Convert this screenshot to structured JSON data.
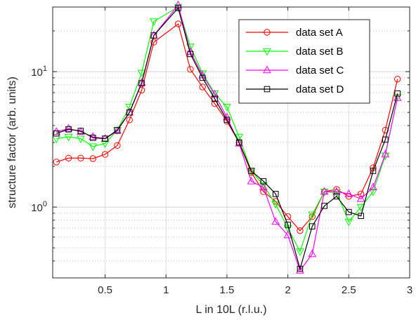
{
  "chart_data": {
    "type": "line",
    "xlabel": "L in 10L (r.l.u.)",
    "ylabel": "structure factor (arb. units)",
    "xlim": [
      0.07,
      3.0
    ],
    "ylim": [
      0.3,
      30
    ],
    "yscale": "log",
    "grid": "on",
    "legend_position": "top-right",
    "x_ticks": [
      0.5,
      1,
      1.5,
      2,
      2.5,
      3
    ],
    "x_tick_labels": [
      "0.5",
      "1",
      "1.5",
      "2",
      "2.5",
      "3"
    ],
    "y_ticks": [
      1,
      10
    ],
    "y_tick_labels": [
      "10^0",
      "10^1"
    ],
    "x": [
      0.1,
      0.2,
      0.3,
      0.4,
      0.5,
      0.6,
      0.7,
      0.8,
      0.9,
      1.1,
      1.2,
      1.3,
      1.4,
      1.5,
      1.6,
      1.7,
      1.8,
      1.9,
      2.0,
      2.1,
      2.2,
      2.3,
      2.4,
      2.5,
      2.6,
      2.7,
      2.8,
      2.9
    ],
    "series": [
      {
        "name": "data set A",
        "color": "#ff0000",
        "marker": "circle",
        "values": [
          2.15,
          2.3,
          2.3,
          2.28,
          2.45,
          2.85,
          4.4,
          7.3,
          16.5,
          22.5,
          10.4,
          7.7,
          5.8,
          4.3,
          3.0,
          1.8,
          1.3,
          1.1,
          0.85,
          0.67,
          0.85,
          1.3,
          1.35,
          1.2,
          1.25,
          1.95,
          3.7,
          8.8
        ]
      },
      {
        "name": "data set B",
        "color": "#00ff00",
        "marker": "triangle-down",
        "values": [
          3.2,
          3.3,
          3.2,
          2.8,
          2.95,
          3.7,
          5.5,
          9.8,
          23.5,
          30.0,
          15.3,
          9.7,
          6.9,
          5.5,
          3.3,
          1.85,
          1.45,
          1.05,
          0.7,
          0.47,
          0.88,
          1.3,
          1.28,
          0.78,
          1.0,
          1.3,
          2.4,
          6.5
        ]
      },
      {
        "name": "data set C",
        "color": "#ff00ff",
        "marker": "triangle-up",
        "values": [
          3.6,
          3.8,
          3.6,
          3.3,
          3.2,
          3.65,
          5.0,
          8.3,
          18.5,
          31.0,
          14.0,
          9.4,
          6.8,
          4.6,
          2.95,
          1.55,
          1.4,
          0.78,
          0.62,
          0.34,
          0.45,
          1.3,
          1.3,
          1.25,
          1.15,
          1.4,
          2.45,
          6.4
        ]
      },
      {
        "name": "data set D",
        "color": "#000000",
        "marker": "square",
        "values": [
          3.5,
          3.75,
          3.65,
          3.25,
          3.2,
          3.7,
          5.0,
          8.2,
          18.5,
          29.5,
          13.5,
          9.0,
          6.3,
          4.4,
          3.0,
          1.85,
          1.55,
          1.25,
          0.74,
          0.35,
          0.72,
          1.02,
          1.2,
          0.92,
          0.86,
          1.85,
          3.15,
          6.9
        ]
      }
    ]
  }
}
